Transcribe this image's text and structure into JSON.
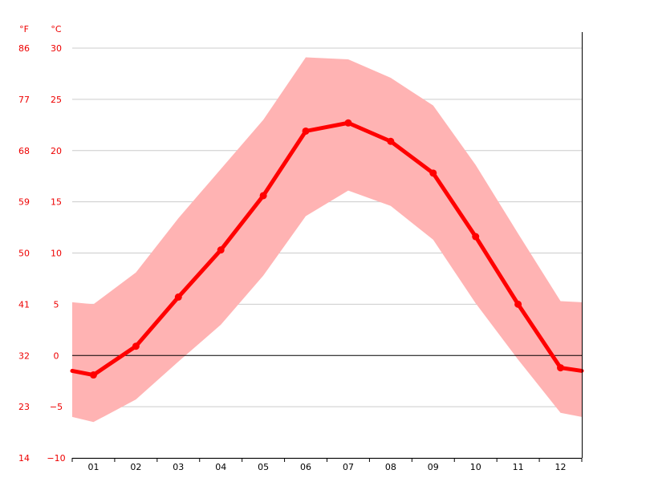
{
  "chart_data": {
    "type": "line",
    "title": "",
    "xlabel": "",
    "ylabel": "",
    "units": {
      "fahrenheit": "°F",
      "celsius": "°C"
    },
    "categories": [
      "01",
      "02",
      "03",
      "04",
      "05",
      "06",
      "07",
      "08",
      "09",
      "10",
      "11",
      "12"
    ],
    "ylim": [
      -10,
      30
    ],
    "y_ticks_celsius": [
      "30",
      "25",
      "20",
      "15",
      "10",
      "5",
      "0",
      "−5",
      "−10"
    ],
    "y_ticks_fahrenheit": [
      "86",
      "77",
      "68",
      "59",
      "50",
      "41",
      "32",
      "23",
      "14"
    ],
    "y_tick_values": [
      30,
      25,
      20,
      15,
      10,
      5,
      0,
      -5,
      -10
    ],
    "grid": true,
    "series": [
      {
        "role": "mean",
        "values": [
          -1.9,
          0.9,
          5.7,
          10.3,
          15.6,
          21.9,
          22.7,
          20.9,
          17.8,
          11.6,
          5.0,
          -1.2
        ]
      },
      {
        "role": "max",
        "values": [
          5.0,
          8.1,
          13.4,
          18.2,
          23.0,
          29.1,
          28.9,
          27.1,
          24.4,
          18.6,
          11.9,
          5.3
        ]
      },
      {
        "role": "min",
        "values": [
          -6.5,
          -4.3,
          -0.6,
          3.0,
          7.8,
          13.6,
          16.1,
          14.6,
          11.3,
          5.1,
          -0.4,
          -5.6
        ]
      }
    ],
    "edge_values": {
      "mean": [
        -1.5,
        -1.5
      ],
      "max": [
        5.2,
        5.2
      ],
      "min": [
        -6.0,
        -6.0
      ]
    },
    "colors": {
      "band": "#ffb3b3",
      "line": "#ff0000",
      "axis_text": "#ee0000",
      "grid": "#cccccc",
      "zero": "#000000"
    }
  }
}
